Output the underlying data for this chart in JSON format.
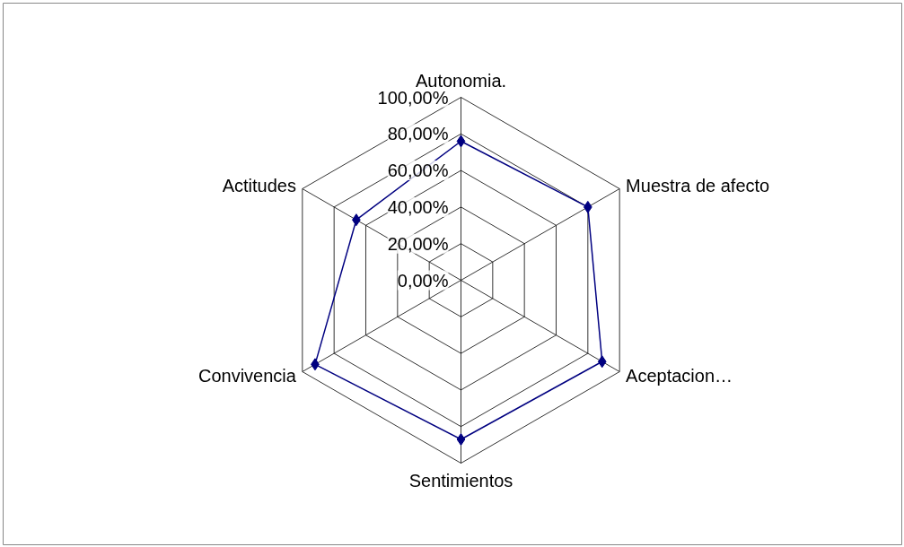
{
  "chart_data": {
    "type": "radar",
    "categories": [
      "Autonomia.",
      "Muestra de afecto",
      "Aceptacion…",
      "Sentimientos",
      "Convivencia",
      "Actitudes"
    ],
    "series": [
      {
        "color": "#000080",
        "values": [
          76,
          80,
          89,
          87,
          92,
          66
        ]
      }
    ],
    "ylim": [
      0,
      100
    ],
    "yticks": [
      {
        "value": 0,
        "label": "0,00%"
      },
      {
        "value": 20,
        "label": "20,00%"
      },
      {
        "value": 40,
        "label": "40,00%"
      },
      {
        "value": 60,
        "label": "60,00%"
      },
      {
        "value": 80,
        "label": "80,00%"
      },
      {
        "value": 100,
        "label": "100,00%"
      }
    ],
    "marker": "diamond",
    "line_style": "solid"
  }
}
